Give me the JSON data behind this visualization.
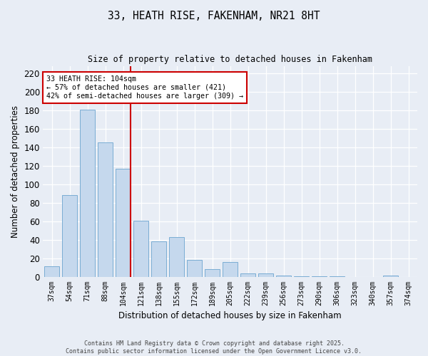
{
  "title": "33, HEATH RISE, FAKENHAM, NR21 8HT",
  "subtitle": "Size of property relative to detached houses in Fakenham",
  "xlabel": "Distribution of detached houses by size in Fakenham",
  "ylabel": "Number of detached properties",
  "categories": [
    "37sqm",
    "54sqm",
    "71sqm",
    "88sqm",
    "104sqm",
    "121sqm",
    "138sqm",
    "155sqm",
    "172sqm",
    "189sqm",
    "205sqm",
    "222sqm",
    "239sqm",
    "256sqm",
    "273sqm",
    "290sqm",
    "306sqm",
    "323sqm",
    "340sqm",
    "357sqm",
    "374sqm"
  ],
  "values": [
    12,
    89,
    181,
    146,
    117,
    61,
    39,
    43,
    19,
    9,
    16,
    4,
    4,
    2,
    1,
    1,
    1,
    0,
    0,
    2,
    0
  ],
  "bar_color": "#c5d8ed",
  "bar_edge_color": "#7aadd4",
  "property_index": 4,
  "annotation_text": "33 HEATH RISE: 104sqm\n← 57% of detached houses are smaller (421)\n42% of semi-detached houses are larger (309) →",
  "annotation_box_color": "#ffffff",
  "annotation_box_edge_color": "#cc0000",
  "vline_color": "#cc0000",
  "background_color": "#e8edf5",
  "plot_background_color": "#e8edf5",
  "ylim": [
    0,
    228
  ],
  "yticks": [
    0,
    20,
    40,
    60,
    80,
    100,
    120,
    140,
    160,
    180,
    200,
    220
  ],
  "footer_line1": "Contains HM Land Registry data © Crown copyright and database right 2025.",
  "footer_line2": "Contains public sector information licensed under the Open Government Licence v3.0."
}
